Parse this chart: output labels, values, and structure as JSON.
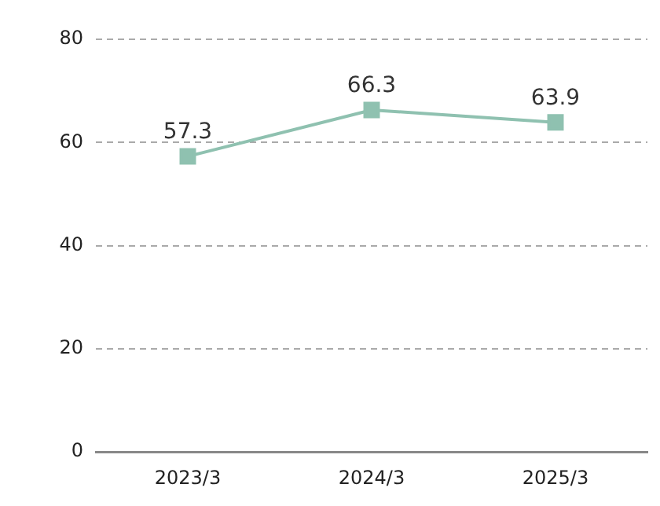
{
  "chart_data": {
    "type": "line",
    "categories": [
      "2023/3",
      "2024/3",
      "2025/3"
    ],
    "series": [
      {
        "color": "#8fc1b0",
        "values": [
          57.3,
          66.3,
          63.9
        ]
      }
    ],
    "ylim": [
      0,
      80
    ],
    "yticks": [
      0,
      20,
      40,
      60,
      80
    ],
    "grid": "y",
    "legend": false,
    "marker": "square",
    "line_style": "solid",
    "data_labels": true
  }
}
